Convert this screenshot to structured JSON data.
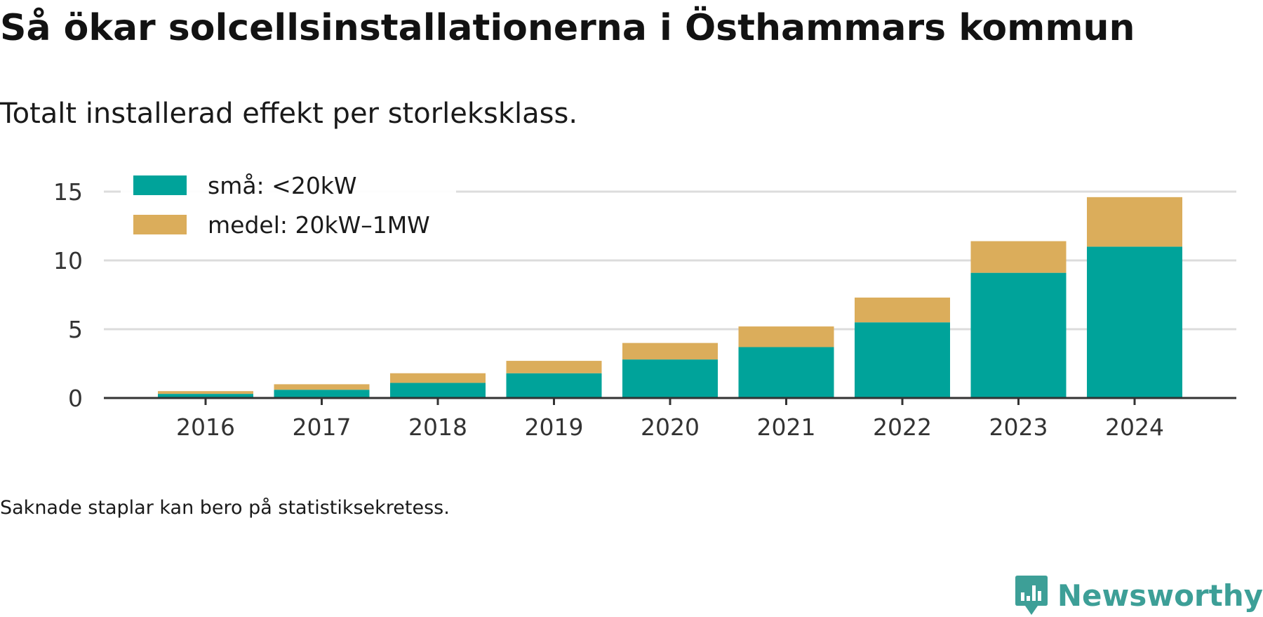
{
  "title": "Så ökar solcellsinstallationerna i Östhammars kommun",
  "subtitle": "Totalt installerad effekt per storleksklass.",
  "note": "Saknade staplar kan bero på statistiksekretess.",
  "brand": {
    "name": "Newsworthy",
    "icon": "newsworthy-logo-icon",
    "color": "#3d9f97"
  },
  "chart_data": {
    "type": "bar",
    "stacked": true,
    "categories": [
      "2016",
      "2017",
      "2018",
      "2019",
      "2020",
      "2021",
      "2022",
      "2023",
      "2024"
    ],
    "series": [
      {
        "name": "små: <20kW",
        "color": "#00a39a",
        "values": [
          0.3,
          0.6,
          1.1,
          1.8,
          2.8,
          3.7,
          5.5,
          9.1,
          11.0
        ]
      },
      {
        "name": "medel: 20kW–1MW",
        "color": "#dbad5b",
        "values": [
          0.2,
          0.4,
          0.7,
          0.9,
          1.2,
          1.5,
          1.8,
          2.3,
          3.6
        ]
      }
    ],
    "y_ticks": [
      "0",
      "5",
      "10",
      "15"
    ],
    "ylim": [
      0,
      15
    ],
    "grid": true,
    "legend_position": "top-left",
    "xlabel": "",
    "ylabel": ""
  }
}
